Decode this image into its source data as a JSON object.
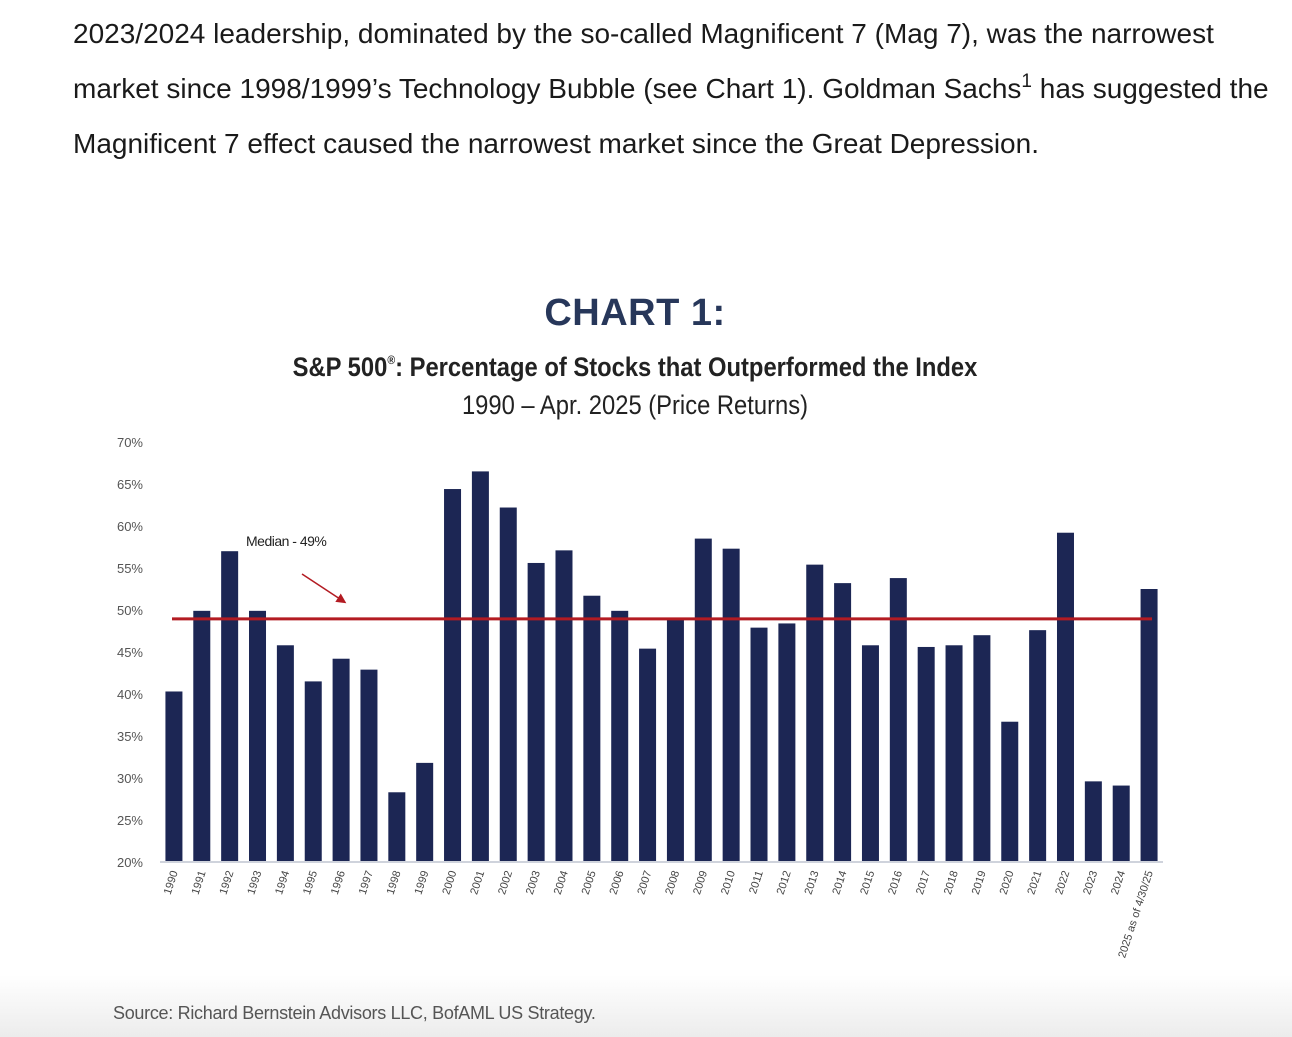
{
  "article": {
    "paragraph_before_sup": "2023/2024 leadership, dominated by the so-called Magnificent 7 (Mag 7), was the narrowest market since 1998/1999’s Technology Bubble (see Chart 1). Goldman Sachs",
    "footnote_ref": "1",
    "paragraph_after_sup": " has suggested the Magnificent 7 effect caused the narrowest market since the Great Depression."
  },
  "chart_heading": "CHART 1:",
  "chart_title": "S&P 500",
  "chart_title_mark": "®",
  "chart_title_rest": ": Percentage of Stocks that Outperformed the Index",
  "chart_subtitle": "1990 – Apr. 2025 (Price Returns)",
  "source": "Source: Richard Bernstein Advisors LLC, BofAML US Strategy.",
  "colors": {
    "bar": "#1c2654",
    "median_line": "#b31b22",
    "heading": "#27375a"
  },
  "chart_data": {
    "type": "bar",
    "title": "S&P 500®: Percentage of Stocks that Outperformed the Index",
    "subtitle": "1990 – Apr. 2025 (Price Returns)",
    "xlabel": "",
    "ylabel": "",
    "ylim": [
      20,
      70
    ],
    "y_ticks": [
      "20%",
      "25%",
      "30%",
      "35%",
      "40%",
      "45%",
      "50%",
      "55%",
      "60%",
      "65%",
      "70%"
    ],
    "grid": false,
    "categories": [
      "1990",
      "1991",
      "1992",
      "1993",
      "1994",
      "1995",
      "1996",
      "1997",
      "1998",
      "1999",
      "2000",
      "2001",
      "2002",
      "2003",
      "2004",
      "2005",
      "2006",
      "2007",
      "2008",
      "2009",
      "2010",
      "2011",
      "2012",
      "2013",
      "2014",
      "2015",
      "2016",
      "2017",
      "2018",
      "2019",
      "2020",
      "2021",
      "2022",
      "2023",
      "2024",
      "2025 as of 4/30/25"
    ],
    "values": [
      40.3,
      49.9,
      57.0,
      49.9,
      45.8,
      41.5,
      44.2,
      42.9,
      28.3,
      31.8,
      64.4,
      66.5,
      62.2,
      55.6,
      57.1,
      51.7,
      49.9,
      45.4,
      49.1,
      58.5,
      57.3,
      47.9,
      48.4,
      55.4,
      53.2,
      45.8,
      53.8,
      45.6,
      45.8,
      47.0,
      36.7,
      47.6,
      59.2,
      29.6,
      29.1,
      52.5
    ],
    "median": {
      "value": 49,
      "label": "Median - 49%"
    }
  }
}
